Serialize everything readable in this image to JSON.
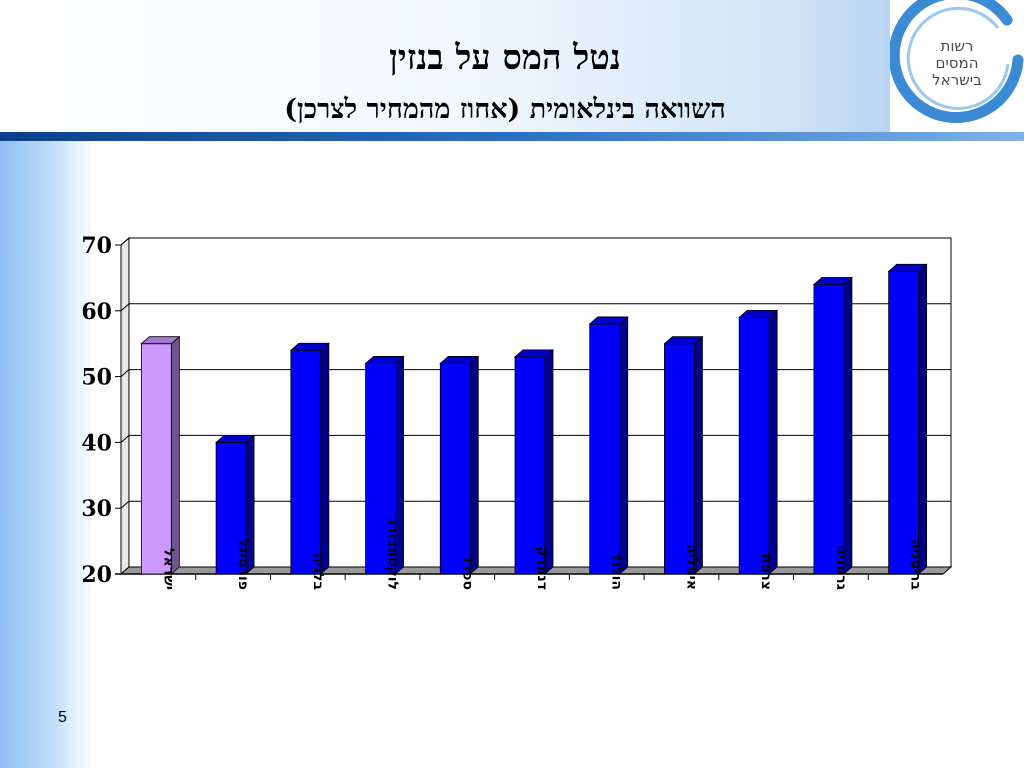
{
  "slide": {
    "title": "נטל המס על בנזין",
    "subtitle": "השוואה בינלאומית (אחוז מהמחיר לצרכן)",
    "page_number": "5"
  },
  "logo": {
    "lines": [
      "רשות",
      "המסים",
      "בישראל"
    ],
    "ring_color": "#3a8bd4"
  },
  "chart_data": {
    "type": "bar",
    "title": "",
    "xlabel": "",
    "ylabel": "",
    "categories": [
      "ישראל",
      "פורטוגל",
      "בלגיה",
      "לוקסמבורג",
      "ספרד",
      "דנמרק",
      "הולנד",
      "איטליה",
      "צרפת",
      "גרמניה",
      "בריטניה"
    ],
    "values": [
      55,
      40,
      54,
      52,
      52,
      53,
      58,
      55,
      59,
      64,
      66
    ],
    "ylim": [
      20,
      70
    ],
    "yticks": [
      20,
      30,
      40,
      50,
      60,
      70
    ],
    "grid": true,
    "colors": {
      "highlight": "#cc99ff",
      "bar": "#0000ff",
      "highlight_category": "ישראל"
    }
  }
}
